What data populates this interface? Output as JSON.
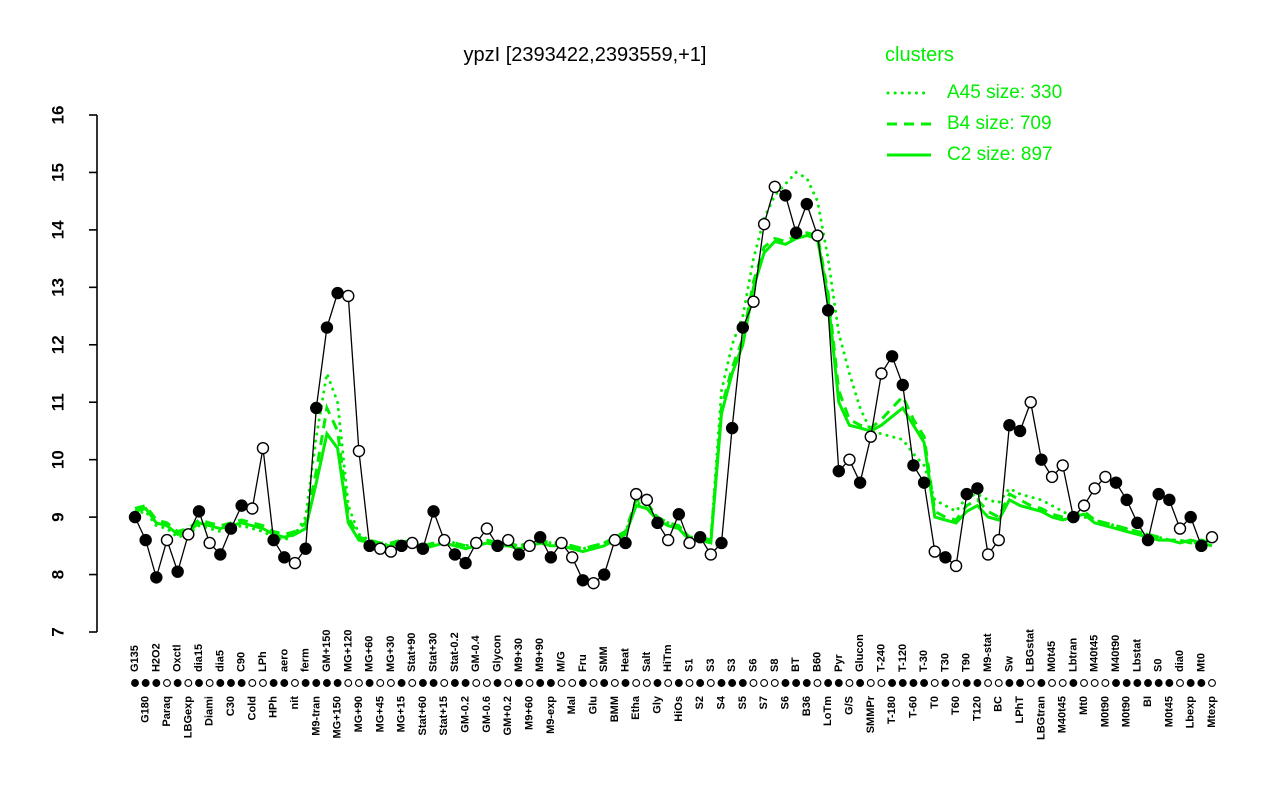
{
  "title": "ypzI [2393422,2393559,+1]",
  "legend": {
    "heading": "clusters",
    "entries": [
      {
        "style": "dotted",
        "label": "A45 size: 330"
      },
      {
        "style": "dashed",
        "label": "B4 size: 709"
      },
      {
        "style": "solid",
        "label": "C2 size: 897"
      }
    ]
  },
  "colors": {
    "cluster_green": "#00EE00",
    "series_black": "#000000",
    "background": "#ffffff"
  },
  "chart_data": {
    "type": "line",
    "title": "ypzI [2393422,2393559,+1]",
    "xlabel": "",
    "ylabel": "",
    "ylim": [
      7,
      16
    ],
    "yticks": [
      7,
      8,
      9,
      10,
      11,
      12,
      13,
      14,
      15,
      16
    ],
    "grid": false,
    "legend_position": "top-right",
    "categories": [
      "G135",
      "G180",
      "H2O2",
      "Paraq",
      "Oxctl",
      "LBGexp",
      "dia15",
      "Diami",
      "dia5",
      "C30",
      "C90",
      "Cold",
      "LPh",
      "HPh",
      "aero",
      "nit",
      "ferm",
      "M9-tran",
      "GM+150",
      "MG+150",
      "MG+120",
      "MG+90",
      "MG+60",
      "MG+45",
      "MG+30",
      "MG+15",
      "Stat+90",
      "Stat+60",
      "Stat+30",
      "Stat+15",
      "Stat-0.2",
      "GM-0.2",
      "GM-0.4",
      "GM-0.6",
      "Glycon",
      "GM+0.2",
      "M9+30",
      "M9+60",
      "M9+90",
      "M9-exp",
      "M/G",
      "Mal",
      "Fru",
      "Glu",
      "SMM",
      "BMM",
      "Heat",
      "Etha",
      "Salt",
      "Gly",
      "HiTm",
      "HiOs",
      "S1",
      "S2",
      "S3",
      "S4",
      "S3",
      "S5",
      "S6",
      "S7",
      "S8",
      "S6",
      "BT",
      "B36",
      "B60",
      "LoTm",
      "Pyr",
      "G/S",
      "Glucon",
      "SMMPr",
      "T-240",
      "T-180",
      "T-120",
      "T-60",
      "T-30",
      "T0",
      "T30",
      "T60",
      "T90",
      "T120",
      "M9-stat",
      "BC",
      "Sw",
      "LPhT",
      "LBGstat",
      "LBGtran",
      "M0t45",
      "M40t45",
      "Lbtran",
      "Mt0",
      "M40t45",
      "M0t90",
      "M40t90",
      "M0t90",
      "Lbstat",
      "BI",
      "S0",
      "M0t45",
      "dia0",
      "Lbexp",
      "Mt0",
      "Mtexp"
    ],
    "point_fill": [
      "f",
      "f",
      "f",
      "o",
      "f",
      "o",
      "f",
      "o",
      "f",
      "f",
      "f",
      "o",
      "o",
      "f",
      "f",
      "o",
      "f",
      "f",
      "f",
      "f",
      "o",
      "o",
      "f",
      "o",
      "o",
      "f",
      "o",
      "f",
      "f",
      "o",
      "f",
      "f",
      "o",
      "o",
      "f",
      "o",
      "f",
      "o",
      "f",
      "f",
      "o",
      "o",
      "f",
      "o",
      "f",
      "o",
      "f",
      "o",
      "o",
      "f",
      "o",
      "f",
      "o",
      "f",
      "o",
      "f",
      "f",
      "f",
      "o",
      "o",
      "o",
      "f",
      "f",
      "f",
      "o",
      "f",
      "f",
      "o",
      "f",
      "o",
      "o",
      "f",
      "f",
      "f",
      "f",
      "o",
      "f",
      "o",
      "f",
      "f",
      "o",
      "o",
      "f",
      "f",
      "o",
      "f",
      "o",
      "o",
      "f",
      "o",
      "o",
      "o",
      "f",
      "f",
      "f",
      "f",
      "f",
      "f",
      "o",
      "f",
      "f",
      "o"
    ],
    "series": [
      {
        "name": "ypzI profile",
        "color": "#000000",
        "style": "solid-points",
        "values": [
          9.0,
          8.6,
          7.95,
          8.6,
          8.05,
          8.7,
          9.1,
          8.55,
          8.35,
          8.8,
          9.2,
          9.15,
          10.2,
          8.6,
          8.3,
          8.2,
          8.45,
          10.9,
          12.3,
          12.9,
          12.85,
          10.15,
          8.5,
          8.45,
          8.4,
          8.5,
          8.55,
          8.45,
          9.1,
          8.6,
          8.35,
          8.2,
          8.55,
          8.8,
          8.5,
          8.6,
          8.35,
          8.5,
          8.65,
          8.3,
          8.55,
          8.3,
          7.9,
          7.85,
          8.0,
          8.6,
          8.55,
          9.4,
          9.3,
          8.9,
          8.6,
          9.05,
          8.55,
          8.65,
          8.35,
          8.55,
          10.55,
          12.3,
          12.75,
          14.1,
          14.75,
          14.6,
          13.95,
          14.45,
          13.9,
          12.6,
          9.8,
          10.0,
          9.6,
          10.4,
          11.5,
          11.8,
          11.3,
          9.9,
          9.6,
          8.4,
          8.3,
          8.15,
          9.4,
          9.5,
          8.35,
          8.6,
          10.6,
          10.5,
          11.0,
          10.0,
          9.7,
          9.9,
          9.0,
          9.2,
          9.5,
          9.7,
          9.6,
          9.3,
          8.9,
          8.6,
          9.4,
          9.3,
          8.8,
          9.0,
          8.5,
          8.65
        ]
      },
      {
        "name": "A45 size: 330",
        "color": "#00EE00",
        "style": "dotted",
        "values": [
          9.05,
          9.1,
          8.85,
          8.8,
          8.65,
          8.7,
          8.85,
          8.8,
          8.75,
          8.8,
          8.85,
          8.8,
          8.75,
          8.65,
          8.6,
          8.7,
          9.0,
          10.4,
          11.5,
          11.0,
          9.2,
          8.7,
          8.6,
          8.55,
          8.5,
          8.6,
          8.55,
          8.5,
          8.55,
          8.6,
          8.55,
          8.5,
          8.55,
          8.6,
          8.55,
          8.55,
          8.5,
          8.55,
          8.6,
          8.55,
          8.55,
          8.5,
          8.45,
          8.5,
          8.55,
          8.65,
          8.75,
          9.25,
          9.2,
          9.0,
          8.9,
          8.85,
          8.65,
          8.65,
          8.6,
          11.2,
          12.0,
          12.5,
          13.5,
          14.2,
          14.6,
          14.8,
          15.0,
          14.9,
          14.5,
          13.5,
          12.2,
          11.5,
          10.9,
          10.5,
          10.45,
          10.4,
          10.35,
          10.1,
          9.9,
          9.3,
          9.2,
          9.1,
          9.35,
          9.4,
          9.3,
          9.25,
          9.5,
          9.4,
          9.35,
          9.3,
          9.2,
          9.1,
          9.0,
          9.0,
          8.95,
          8.9,
          8.85,
          8.8,
          8.75,
          8.7,
          8.65,
          8.6,
          8.6,
          8.55,
          8.55,
          8.5
        ]
      },
      {
        "name": "B4 size: 709",
        "color": "#00EE00",
        "style": "dashed",
        "values": [
          9.15,
          9.2,
          8.95,
          8.9,
          8.75,
          8.8,
          8.95,
          8.9,
          8.85,
          8.9,
          8.95,
          8.9,
          8.85,
          8.75,
          8.7,
          8.75,
          8.9,
          9.8,
          10.9,
          10.5,
          9.0,
          8.65,
          8.6,
          8.55,
          8.55,
          8.6,
          8.55,
          8.5,
          8.55,
          8.6,
          8.55,
          8.5,
          8.55,
          8.6,
          8.55,
          8.55,
          8.5,
          8.55,
          8.6,
          8.55,
          8.55,
          8.5,
          8.45,
          8.5,
          8.55,
          8.65,
          8.75,
          9.3,
          9.25,
          9.0,
          8.9,
          8.85,
          8.65,
          8.65,
          8.6,
          10.9,
          11.6,
          12.1,
          13.1,
          13.7,
          13.85,
          13.8,
          13.9,
          13.95,
          13.9,
          12.9,
          11.2,
          10.7,
          10.6,
          10.55,
          10.7,
          10.9,
          11.1,
          10.7,
          10.4,
          9.1,
          9.0,
          8.95,
          9.2,
          9.3,
          9.1,
          9.0,
          9.4,
          9.3,
          9.2,
          9.15,
          9.05,
          9.0,
          9.05,
          9.1,
          8.95,
          8.9,
          8.85,
          8.8,
          8.75,
          8.7,
          8.65,
          8.6,
          8.6,
          8.55,
          8.6,
          8.55
        ]
      },
      {
        "name": "C2 size: 897",
        "color": "#00EE00",
        "style": "solid",
        "values": [
          9.1,
          9.15,
          8.9,
          8.85,
          8.7,
          8.75,
          8.9,
          8.85,
          8.8,
          8.85,
          8.9,
          8.85,
          8.8,
          8.7,
          8.65,
          8.7,
          8.8,
          9.6,
          10.45,
          10.2,
          8.9,
          8.6,
          8.55,
          8.5,
          8.5,
          8.55,
          8.5,
          8.45,
          8.5,
          8.55,
          8.5,
          8.45,
          8.5,
          8.55,
          8.5,
          8.5,
          8.45,
          8.5,
          8.55,
          8.5,
          8.5,
          8.45,
          8.4,
          8.45,
          8.5,
          8.6,
          8.7,
          9.2,
          9.15,
          8.95,
          8.85,
          8.8,
          8.6,
          8.6,
          8.55,
          10.8,
          11.5,
          12.0,
          13.0,
          13.6,
          13.8,
          13.75,
          13.85,
          13.9,
          13.85,
          12.8,
          11.0,
          10.6,
          10.55,
          10.5,
          10.6,
          10.75,
          10.9,
          10.6,
          10.3,
          9.0,
          8.95,
          8.9,
          9.1,
          9.2,
          9.0,
          8.95,
          9.3,
          9.2,
          9.15,
          9.1,
          9.0,
          8.95,
          9.0,
          9.05,
          8.9,
          8.85,
          8.8,
          8.75,
          8.7,
          8.65,
          8.6,
          8.6,
          8.55,
          8.6,
          8.55,
          8.5
        ]
      }
    ]
  }
}
